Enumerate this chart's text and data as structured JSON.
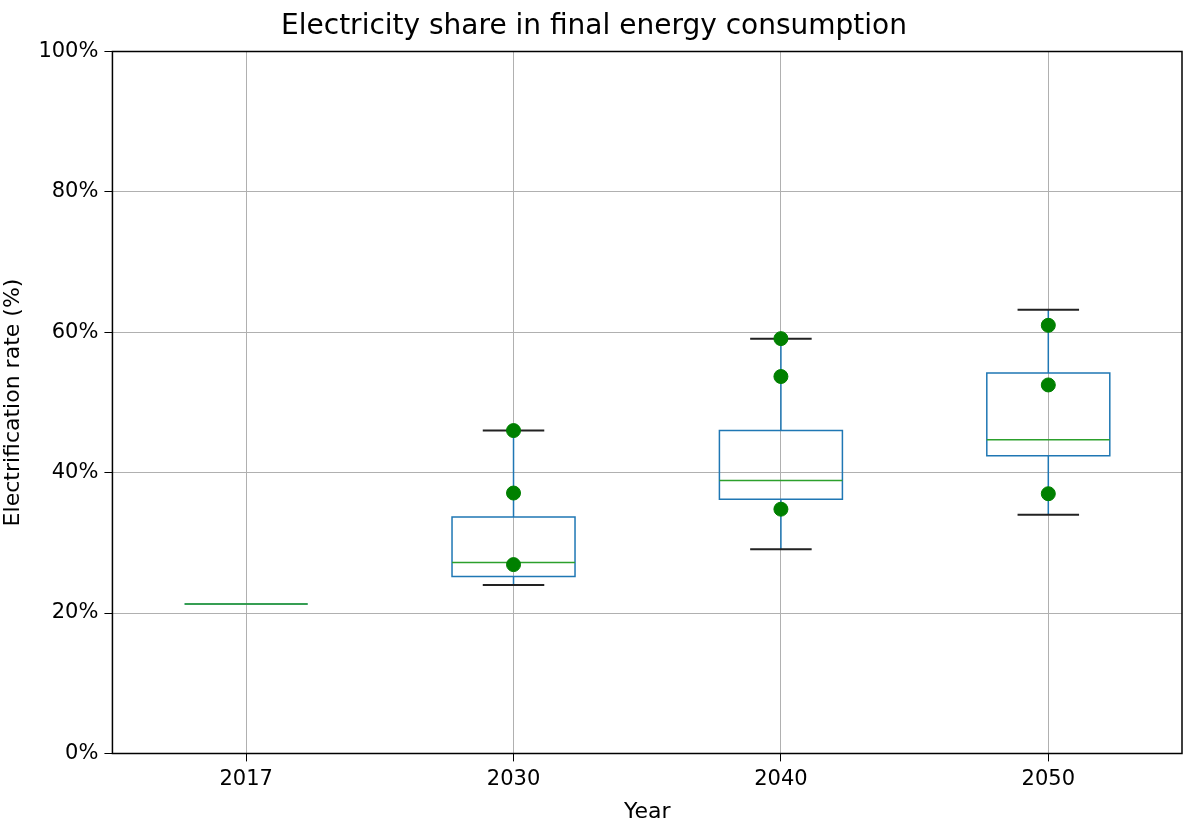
{
  "chart_data": {
    "type": "box",
    "title": "Electricity share in final energy consumption",
    "xlabel": "Year",
    "ylabel": "Electrification rate (%)",
    "categories": [
      "2017",
      "2030",
      "2040",
      "2050"
    ],
    "ylim": [
      0,
      100
    ],
    "yticks": [
      {
        "value": 0,
        "label": "0%"
      },
      {
        "value": 20,
        "label": "20%"
      },
      {
        "value": 40,
        "label": "40%"
      },
      {
        "value": 60,
        "label": "60%"
      },
      {
        "value": 80,
        "label": "80%"
      },
      {
        "value": 100,
        "label": "100%"
      }
    ],
    "grid": true,
    "legend": false,
    "series": [
      {
        "type": "box",
        "color": "#1f77b4",
        "boxes": [
          {
            "low": 21.3,
            "q1": 21.3,
            "median": 21.3,
            "q3": 21.3,
            "high": 21.3
          },
          {
            "low": 24.0,
            "q1": 25.2,
            "median": 27.2,
            "q3": 33.7,
            "high": 46.0
          },
          {
            "low": 29.1,
            "q1": 36.2,
            "median": 38.9,
            "q3": 46.0,
            "high": 59.1
          },
          {
            "low": 34.0,
            "q1": 42.4,
            "median": 44.7,
            "q3": 54.2,
            "high": 63.2
          }
        ]
      },
      {
        "type": "scatter",
        "color": "#008000",
        "marker": "circle",
        "values": [
          null,
          46.0,
          59.1,
          61.0
        ]
      },
      {
        "type": "scatter",
        "color": "#008000",
        "marker": "circle",
        "values": [
          null,
          37.1,
          53.7,
          52.5
        ]
      },
      {
        "type": "scatter",
        "color": "#008000",
        "marker": "circle",
        "values": [
          null,
          26.9,
          34.8,
          37.0
        ]
      }
    ]
  }
}
